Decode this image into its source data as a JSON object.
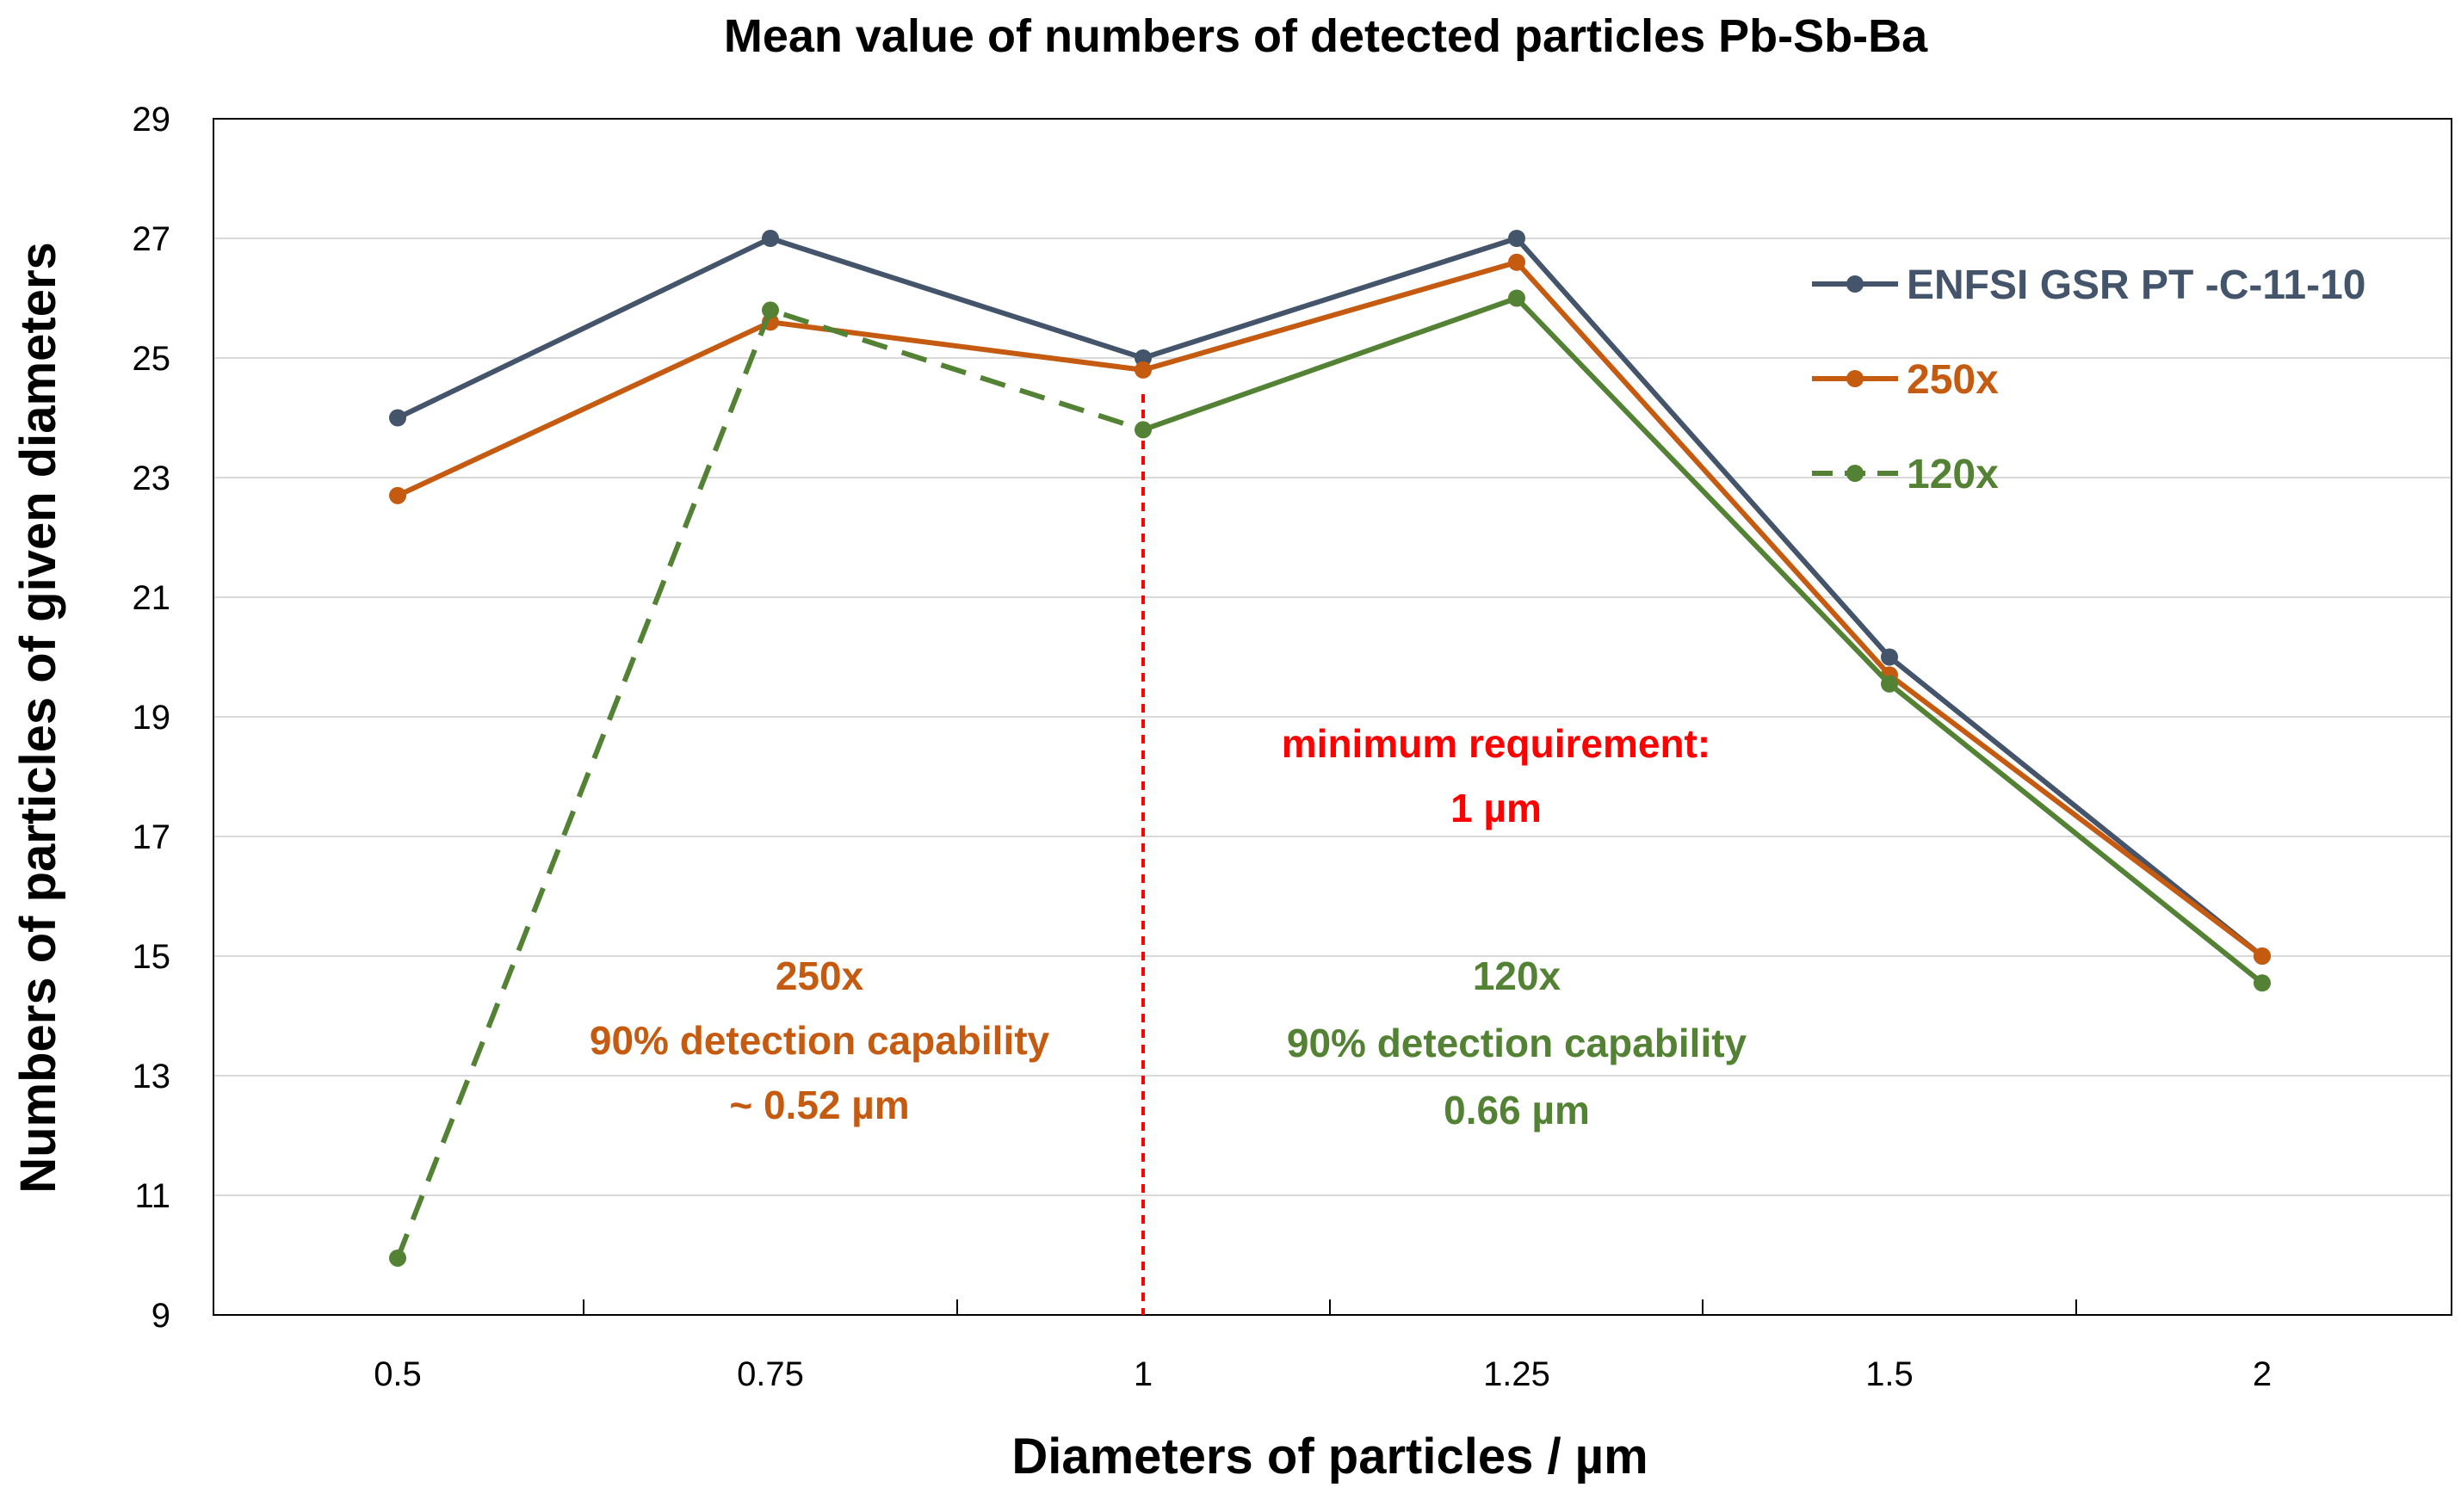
{
  "chart_data": {
    "type": "line",
    "title": "Mean value of numbers of detected particles Pb-Sb-Ba",
    "xlabel": "Diameters of particles / µm",
    "ylabel": "Numbers of particles of given diameters",
    "categories": [
      "0.5",
      "0.75",
      "1",
      "1.25",
      "1.5",
      "2"
    ],
    "ylim": [
      9,
      29
    ],
    "yticks": [
      "9",
      "11",
      "13",
      "15",
      "17",
      "19",
      "21",
      "23",
      "25",
      "27",
      "29"
    ],
    "grid": "horizontal",
    "legend_position": "top-right",
    "series": [
      {
        "name": "ENFSI GSR PT -C-11-10",
        "color": "#44546a",
        "dash": "solid",
        "values": [
          24,
          27,
          25,
          27,
          20,
          15
        ]
      },
      {
        "name": "250x",
        "color": "#c55a11",
        "dash": "solid",
        "values": [
          22.7,
          25.6,
          24.8,
          26.6,
          19.7,
          15
        ]
      },
      {
        "name": "120x",
        "color": "#548235",
        "dash": "dashed-then-solid",
        "dashed_until_index": 2,
        "values": [
          9.95,
          25.8,
          23.8,
          26.0,
          19.55,
          14.55
        ]
      }
    ],
    "threshold_line": {
      "x_category": "1",
      "color": "#ff0000"
    },
    "annotations": {
      "threshold": {
        "lines": [
          "minimum requirement:",
          "1 µm"
        ],
        "color": "#ff0000"
      },
      "left": {
        "lines": [
          "250x",
          "90% detection capability",
          "~ 0.52 µm"
        ],
        "color": "#c55a11"
      },
      "right": {
        "lines": [
          "120x",
          "90% detection capability",
          "0.66 µm"
        ],
        "color": "#548235"
      }
    }
  }
}
